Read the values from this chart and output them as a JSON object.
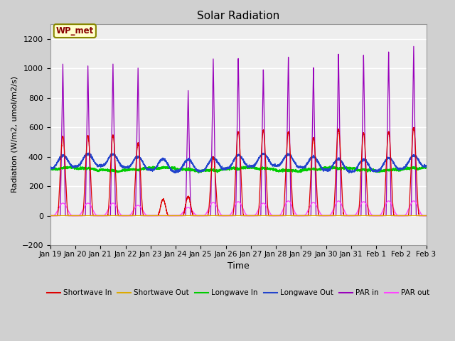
{
  "title": "Solar Radiation",
  "ylabel": "Radiation (W/m2, umol/m2/s)",
  "xlabel": "Time",
  "ylim": [
    -200,
    1300
  ],
  "yticks": [
    -200,
    0,
    200,
    400,
    600,
    800,
    1000,
    1200
  ],
  "x_labels": [
    "Jan 19",
    "Jan 20",
    "Jan 21",
    "Jan 22",
    "Jan 23",
    "Jan 24",
    "Jan 25",
    "Jan 26",
    "Jan 27",
    "Jan 28",
    "Jan 29",
    "Jan 30",
    "Jan 31",
    "Feb 1",
    "Feb 2",
    "Feb 3"
  ],
  "site_label": "WP_met",
  "n_days": 15,
  "sw_in_peaks": [
    540,
    540,
    545,
    490,
    110,
    130,
    400,
    570,
    580,
    570,
    530,
    590,
    560,
    570,
    595
  ],
  "par_in_peaks": [
    1030,
    1020,
    1035,
    1010,
    0,
    860,
    1080,
    1085,
    1005,
    1090,
    1015,
    1105,
    1095,
    1115,
    1150
  ],
  "par_out_peaks": [
    85,
    85,
    85,
    70,
    0,
    55,
    90,
    95,
    85,
    100,
    90,
    100,
    95,
    100,
    100
  ],
  "lw_in_base": 285,
  "lw_out_base": 320,
  "day_centers": [
    0.5,
    1.5,
    2.5,
    3.5,
    4.5,
    5.5,
    6.5,
    7.5,
    8.5,
    9.5,
    10.5,
    11.5,
    12.5,
    13.5,
    14.5
  ]
}
